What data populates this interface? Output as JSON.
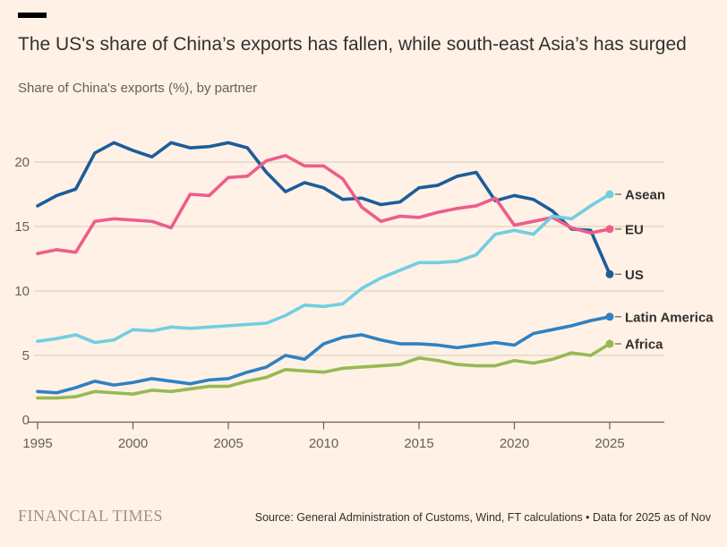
{
  "header": {
    "title": "The US's share of China’s exports has fallen, while south-east Asia’s has surged",
    "subtitle": "Share of China's exports (%), by partner"
  },
  "chart_data": {
    "type": "line",
    "title": "The US's share of China’s exports has fallen, while south-east Asia’s has surged",
    "subtitle": "Share of China's exports (%), by partner",
    "xlabel": "",
    "ylabel": "Share of China's exports (%)",
    "grid": "horizontal",
    "legend_position": "right-end-labels",
    "x": [
      1995,
      1996,
      1997,
      1998,
      1999,
      2000,
      2001,
      2002,
      2003,
      2004,
      2005,
      2006,
      2007,
      2008,
      2009,
      2010,
      2011,
      2012,
      2013,
      2014,
      2015,
      2016,
      2017,
      2018,
      2019,
      2020,
      2021,
      2022,
      2023,
      2024,
      2025
    ],
    "xticks": [
      1995,
      2000,
      2005,
      2010,
      2015,
      2020,
      2025
    ],
    "yticks": [
      0,
      5,
      10,
      15,
      20
    ],
    "xlim": [
      1995,
      2025
    ],
    "ylim": [
      0,
      23.5
    ],
    "series": [
      {
        "name": "Asean",
        "color": "#70cfe2",
        "values": [
          6.1,
          6.3,
          6.6,
          6.0,
          6.2,
          7.0,
          6.9,
          7.2,
          7.1,
          7.2,
          7.3,
          7.4,
          7.5,
          8.1,
          8.9,
          8.8,
          9.0,
          10.2,
          11.0,
          11.6,
          12.2,
          12.2,
          12.3,
          12.8,
          14.4,
          14.7,
          14.4,
          15.8,
          15.6,
          16.6,
          17.5
        ]
      },
      {
        "name": "EU",
        "color": "#ec5e8b",
        "values": [
          12.9,
          13.2,
          13.0,
          15.4,
          15.6,
          15.5,
          15.4,
          14.9,
          17.5,
          17.4,
          18.8,
          18.9,
          20.1,
          20.5,
          19.7,
          19.7,
          18.7,
          16.5,
          15.4,
          15.8,
          15.7,
          16.1,
          16.4,
          16.6,
          17.2,
          15.1,
          15.4,
          15.7,
          14.9,
          14.5,
          14.8
        ]
      },
      {
        "name": "US",
        "color": "#1c5c9c",
        "values": [
          16.6,
          17.4,
          17.9,
          20.7,
          21.5,
          20.9,
          20.4,
          21.5,
          21.1,
          21.2,
          21.5,
          21.1,
          19.2,
          17.7,
          18.4,
          18.0,
          17.1,
          17.2,
          16.7,
          16.9,
          18.0,
          18.2,
          18.9,
          19.2,
          17.0,
          17.4,
          17.1,
          16.2,
          14.8,
          14.7,
          11.3
        ]
      },
      {
        "name": "Latin America",
        "color": "#2f81c3",
        "values": [
          2.2,
          2.1,
          2.5,
          3.0,
          2.7,
          2.9,
          3.2,
          3.0,
          2.8,
          3.1,
          3.2,
          3.7,
          4.1,
          5.0,
          4.7,
          5.9,
          6.4,
          6.6,
          6.2,
          5.9,
          5.9,
          5.8,
          5.6,
          5.8,
          6.0,
          5.8,
          6.7,
          7.0,
          7.3,
          7.7,
          8.0
        ]
      },
      {
        "name": "Africa",
        "color": "#96ba52",
        "values": [
          1.7,
          1.7,
          1.8,
          2.2,
          2.1,
          2.0,
          2.3,
          2.2,
          2.4,
          2.6,
          2.6,
          3.0,
          3.3,
          3.9,
          3.8,
          3.7,
          4.0,
          4.1,
          4.2,
          4.3,
          4.8,
          4.6,
          4.3,
          4.2,
          4.2,
          4.6,
          4.4,
          4.7,
          5.2,
          5.0,
          5.9
        ]
      }
    ]
  },
  "footer": {
    "brand": "FINANCIAL TIMES",
    "source": "Source: General Administration of Customs, Wind, FT calculations • Data for 2025 as of Nov"
  },
  "colors": {
    "background": "#fff1e5",
    "grid": "#d6cabd",
    "axis": "#66605c",
    "muted": "#66605c",
    "text": "#33302e",
    "accent_bar": "#000000",
    "logo": "#9b938b"
  }
}
